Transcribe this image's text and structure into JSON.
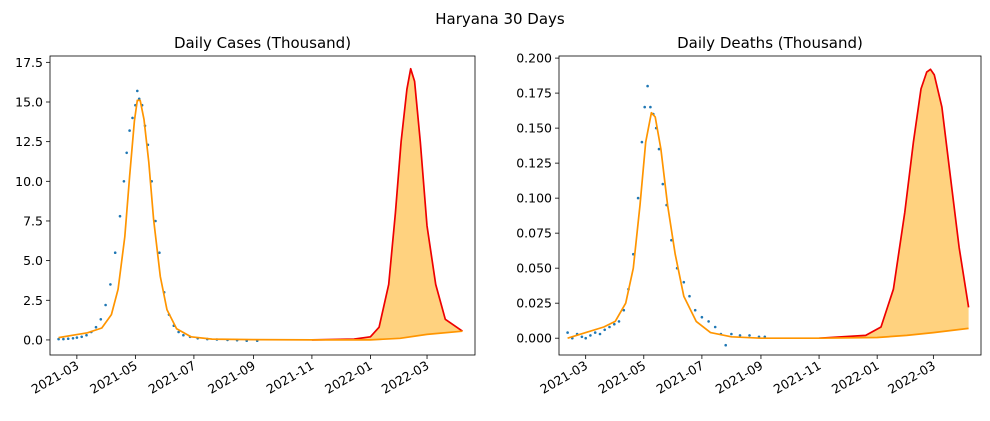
{
  "figure": {
    "suptitle": "Haryana 30 Days"
  },
  "colors": {
    "observed": "#1f77b4",
    "fit": "#ff9500",
    "projection": "#ee0000",
    "band_fill": "#ffd27f"
  },
  "chart_data": [
    {
      "type": "line",
      "title": "Daily Cases (Thousand)",
      "xlabel": "",
      "ylabel": "",
      "x_ticks": [
        "2021-03",
        "2021-05",
        "2021-07",
        "2021-09",
        "2021-11",
        "2022-01",
        "2022-03"
      ],
      "y_ticks": [
        "0.0",
        "2.5",
        "5.0",
        "7.5",
        "10.0",
        "12.5",
        "15.0",
        "17.5"
      ],
      "ylim": [
        -0.95,
        17.9
      ],
      "xlim": [
        "2021-02-01",
        "2022-04-20"
      ],
      "grid": false,
      "series": [
        {
          "role": "observed (scatter)",
          "x": [
            "2021-02-10",
            "2021-02-15",
            "2021-02-20",
            "2021-02-25",
            "2021-03-01",
            "2021-03-06",
            "2021-03-11",
            "2021-03-16",
            "2021-03-21",
            "2021-03-26",
            "2021-03-31",
            "2021-04-05",
            "2021-04-10",
            "2021-04-15",
            "2021-04-19",
            "2021-04-22",
            "2021-04-25",
            "2021-04-28",
            "2021-05-01",
            "2021-05-03",
            "2021-05-05",
            "2021-05-08",
            "2021-05-11",
            "2021-05-14",
            "2021-05-18",
            "2021-05-22",
            "2021-05-26",
            "2021-05-31",
            "2021-06-05",
            "2021-06-10",
            "2021-06-15",
            "2021-06-20",
            "2021-06-27",
            "2021-07-05",
            "2021-07-15",
            "2021-07-25",
            "2021-08-05",
            "2021-08-15",
            "2021-08-25",
            "2021-09-05"
          ],
          "y": [
            0.05,
            0.05,
            0.08,
            0.1,
            0.15,
            0.2,
            0.3,
            0.5,
            0.8,
            1.3,
            2.2,
            3.5,
            5.5,
            7.8,
            10.0,
            11.8,
            13.2,
            14.0,
            14.8,
            15.7,
            15.2,
            14.8,
            13.5,
            12.3,
            10.0,
            7.5,
            5.5,
            3.0,
            1.6,
            0.9,
            0.5,
            0.3,
            0.2,
            0.1,
            0.05,
            0.03,
            0.0,
            -0.02,
            -0.05,
            -0.05
          ]
        },
        {
          "role": "fit (orange line)",
          "x": [
            "2021-02-10",
            "2021-02-25",
            "2021-03-12",
            "2021-03-27",
            "2021-04-06",
            "2021-04-13",
            "2021-04-20",
            "2021-04-25",
            "2021-04-30",
            "2021-05-03",
            "2021-05-06",
            "2021-05-10",
            "2021-05-15",
            "2021-05-20",
            "2021-05-27",
            "2021-06-03",
            "2021-06-13",
            "2021-06-28",
            "2021-07-20",
            "2021-09-01",
            "2021-11-01",
            "2022-01-01",
            "2022-02-01",
            "2022-03-01",
            "2022-04-07"
          ],
          "y": [
            0.15,
            0.3,
            0.45,
            0.75,
            1.6,
            3.2,
            6.5,
            10.3,
            13.8,
            15.1,
            15.1,
            13.9,
            11.2,
            7.6,
            4.0,
            1.9,
            0.7,
            0.2,
            0.05,
            0.02,
            0.0,
            0.0,
            0.1,
            0.35,
            0.55
          ]
        },
        {
          "role": "projection (red line)",
          "x": [
            "2021-11-01",
            "2021-12-15",
            "2022-01-01",
            "2022-01-10",
            "2022-01-20",
            "2022-01-27",
            "2022-02-02",
            "2022-02-08",
            "2022-02-12",
            "2022-02-16",
            "2022-02-22",
            "2022-03-01",
            "2022-03-10",
            "2022-03-20",
            "2022-04-07"
          ],
          "y": [
            0.0,
            0.05,
            0.2,
            0.8,
            3.5,
            8.0,
            12.5,
            15.8,
            17.1,
            16.3,
            12.5,
            7.2,
            3.5,
            1.3,
            0.55
          ]
        }
      ]
    },
    {
      "type": "line",
      "title": "Daily Deaths (Thousand)",
      "xlabel": "",
      "ylabel": "",
      "x_ticks": [
        "2021-03",
        "2021-05",
        "2021-07",
        "2021-09",
        "2021-11",
        "2022-01",
        "2022-03"
      ],
      "y_ticks": [
        "0.000",
        "0.025",
        "0.050",
        "0.075",
        "0.100",
        "0.125",
        "0.150",
        "0.175",
        "0.200"
      ],
      "ylim": [
        -0.012,
        0.2015
      ],
      "xlim": [
        "2021-02-01",
        "2022-04-20"
      ],
      "grid": false,
      "series": [
        {
          "role": "observed (scatter)",
          "x": [
            "2021-02-10",
            "2021-02-15",
            "2021-02-20",
            "2021-02-25",
            "2021-03-01",
            "2021-03-06",
            "2021-03-11",
            "2021-03-16",
            "2021-03-21",
            "2021-03-26",
            "2021-03-31",
            "2021-04-05",
            "2021-04-10",
            "2021-04-15",
            "2021-04-20",
            "2021-04-25",
            "2021-04-29",
            "2021-05-02",
            "2021-05-05",
            "2021-05-08",
            "2021-05-11",
            "2021-05-14",
            "2021-05-17",
            "2021-05-21",
            "2021-05-25",
            "2021-05-30",
            "2021-06-05",
            "2021-06-12",
            "2021-06-18",
            "2021-06-24",
            "2021-07-01",
            "2021-07-08",
            "2021-07-15",
            "2021-07-21",
            "2021-07-26",
            "2021-08-01",
            "2021-08-10",
            "2021-08-20",
            "2021-08-30",
            "2021-09-05"
          ],
          "y": [
            0.004,
            0.0,
            0.003,
            0.001,
            0.0,
            0.002,
            0.004,
            0.003,
            0.006,
            0.008,
            0.01,
            0.012,
            0.02,
            0.035,
            0.06,
            0.1,
            0.14,
            0.165,
            0.18,
            0.165,
            0.16,
            0.15,
            0.135,
            0.11,
            0.095,
            0.07,
            0.05,
            0.04,
            0.03,
            0.02,
            0.015,
            0.012,
            0.008,
            0.003,
            -0.005,
            0.003,
            0.002,
            0.002,
            0.001,
            0.001
          ]
        },
        {
          "role": "fit (orange line)",
          "x": [
            "2021-02-10",
            "2021-03-01",
            "2021-03-20",
            "2021-04-01",
            "2021-04-12",
            "2021-04-20",
            "2021-04-27",
            "2021-05-03",
            "2021-05-09",
            "2021-05-13",
            "2021-05-19",
            "2021-05-26",
            "2021-06-03",
            "2021-06-12",
            "2021-06-25",
            "2021-07-10",
            "2021-08-01",
            "2021-09-01",
            "2021-11-01",
            "2022-01-01",
            "2022-02-01",
            "2022-03-01",
            "2022-04-07"
          ],
          "y": [
            0.0,
            0.004,
            0.008,
            0.012,
            0.025,
            0.05,
            0.095,
            0.14,
            0.161,
            0.158,
            0.135,
            0.095,
            0.06,
            0.03,
            0.012,
            0.004,
            0.001,
            0.0,
            0.0,
            0.0005,
            0.002,
            0.004,
            0.007
          ]
        },
        {
          "role": "projection (red line)",
          "x": [
            "2021-11-01",
            "2021-12-20",
            "2022-01-05",
            "2022-01-18",
            "2022-01-30",
            "2022-02-08",
            "2022-02-16",
            "2022-02-22",
            "2022-02-26",
            "2022-03-02",
            "2022-03-10",
            "2022-03-18",
            "2022-03-28",
            "2022-04-07"
          ],
          "y": [
            0.0,
            0.002,
            0.008,
            0.035,
            0.09,
            0.14,
            0.178,
            0.19,
            0.192,
            0.188,
            0.165,
            0.12,
            0.065,
            0.022
          ]
        }
      ]
    }
  ]
}
